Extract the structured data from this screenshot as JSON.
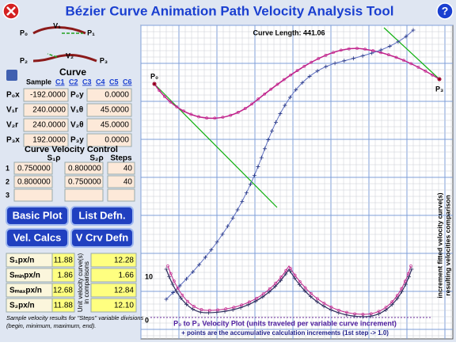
{
  "header": {
    "title": "Bézier Curve Animation Path Velocity Analysis Tool"
  },
  "diagram": {
    "labels": [
      "P₀",
      "V₁",
      "P₁",
      "P₂",
      "V₂",
      "P₃"
    ]
  },
  "curve": {
    "title": "Curve",
    "sample_label": "Sample",
    "samples": [
      "C1",
      "C2",
      "C3",
      "C4",
      "C5",
      "C6"
    ],
    "params": [
      [
        "P₀x",
        "-192.0000",
        "P₀y",
        "0.0000"
      ],
      [
        "V₁r",
        "240.0000",
        "V₁θ",
        "45.0000"
      ],
      [
        "V₂r",
        "240.0000",
        "V₂θ",
        "45.0000"
      ],
      [
        "P₃x",
        "192.0000",
        "P₃y",
        "0.0000"
      ]
    ]
  },
  "velocity": {
    "title": "Curve Velocity Control",
    "headers": [
      "S₁ρ",
      "S₂ρ",
      "Steps"
    ],
    "rows": [
      {
        "index": 1,
        "s1": "0.750000",
        "s2": "0.800000",
        "steps": 40
      },
      {
        "index": 2,
        "s1": "0.800000",
        "s2": "0.750000",
        "steps": 40
      },
      {
        "index": 3
      }
    ]
  },
  "buttons": [
    "Basic Plot",
    "List Defn.",
    "Vel. Calcs",
    "V Crv Defn"
  ],
  "stats": {
    "rows": [
      {
        "label": "S₁px/n",
        "v1": "11.88",
        "v2": "12.28"
      },
      {
        "label": "Sₘᵢₙpx/n",
        "v1": "1.86",
        "v2": "1.66"
      },
      {
        "label": "Sₘₐₓpx/n",
        "v1": "12.68",
        "v2": "12.84"
      },
      {
        "label": "S₂px/n",
        "v1": "11.88",
        "v2": "12.10"
      }
    ],
    "side_label": [
      "Unit velocity curve(s)",
      "in comparisons"
    ]
  },
  "note": [
    "Sample velocity results for \"Steps\" variable divisions",
    "(begin, minimum, maximum, end)."
  ],
  "plot": {
    "length_label": "Curve Length: 441.06",
    "p0": "P₀",
    "p3": "P₃",
    "axis_labels": [
      10,
      0
    ],
    "caption": "P₀  to P₃ Velocity Plot (units traveled per variable curve increment)",
    "legend": "+ points are the accumulative calculation increments (1st step -> 1.0)",
    "side_labels": [
      "increment fitted velocity curve(s)",
      "resulting velocities comparison"
    ]
  }
}
